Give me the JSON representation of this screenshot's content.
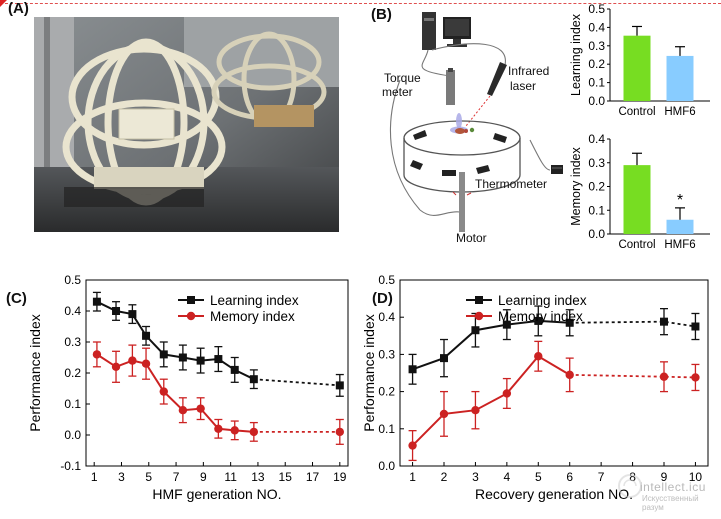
{
  "panels": {
    "a_label": "(A)",
    "b_label": "(B)",
    "c_label": "(C)",
    "d_label": "(D)"
  },
  "apparatus": {
    "torque_meter": [
      "Torque",
      "meter"
    ],
    "infrared_laser": [
      "Infrared",
      "laser"
    ],
    "thermometer": "Thermometer",
    "motor": "Motor"
  },
  "watermark": {
    "brand": "intellect.icu",
    "sub": "Искусственный разум"
  },
  "colors": {
    "learning": "#111111",
    "memory": "#cc2222",
    "bar_control": "#77dd22",
    "bar_hmf": "#88ccff"
  },
  "chart_data": [
    {
      "id": "b-learning",
      "type": "bar",
      "ylabel": "Learning index",
      "categories": [
        "Control",
        "HMF6"
      ],
      "values": [
        0.355,
        0.245
      ],
      "errors": [
        0.05,
        0.05
      ],
      "ylim": [
        0,
        0.5
      ],
      "yticks": [
        "0.0",
        "0.1",
        "0.2",
        "0.3",
        "0.4",
        "0.5"
      ],
      "bar_colors": [
        "#77dd22",
        "#88ccff"
      ],
      "annotations": []
    },
    {
      "id": "b-memory",
      "type": "bar",
      "ylabel": "Memory index",
      "categories": [
        "Control",
        "HMF6"
      ],
      "values": [
        0.29,
        0.06
      ],
      "errors": [
        0.05,
        0.05
      ],
      "ylim": [
        0,
        0.4
      ],
      "yticks": [
        "0.0",
        "0.1",
        "0.2",
        "0.3",
        "0.4"
      ],
      "bar_colors": [
        "#77dd22",
        "#88ccff"
      ],
      "annotations": [
        "*"
      ]
    },
    {
      "id": "c",
      "type": "line",
      "xlabel": "HMF generation NO.",
      "ylabel": "Performance index",
      "ylim": [
        -0.1,
        0.5
      ],
      "yticks": [
        "-0.1",
        "0.0",
        "0.1",
        "0.2",
        "0.3",
        "0.4",
        "0.5"
      ],
      "xticks": [
        "1",
        "3",
        "5",
        "7",
        "9",
        "11",
        "13",
        "15",
        "17",
        "19"
      ],
      "x": [
        1,
        1.5,
        2,
        2.5,
        3,
        3.5,
        4,
        4.5,
        5,
        5.5,
        6,
        6.5,
        7,
        7.5,
        8,
        8.5,
        9,
        19
      ],
      "series": [
        {
          "name": "Learning index",
          "values": [
            0.43,
            0.4,
            0.39,
            0.32,
            0.26,
            0.25,
            0.24,
            0.245,
            0.21,
            0.18,
            null,
            null,
            null,
            null,
            null,
            null,
            null,
            0.16
          ],
          "errors": [
            0.03,
            0.03,
            0.03,
            0.03,
            0.04,
            0.04,
            0.04,
            0.04,
            0.04,
            0.03,
            null,
            null,
            null,
            null,
            null,
            null,
            null,
            0.035
          ]
        },
        {
          "name": "Memory index",
          "values": [
            0.26,
            0.22,
            0.24,
            0.23,
            0.14,
            0.08,
            0.085,
            0.02,
            0.015,
            0.01,
            null,
            null,
            null,
            null,
            null,
            null,
            null,
            0.01
          ],
          "errors": [
            0.04,
            0.05,
            0.05,
            0.05,
            0.04,
            0.04,
            0.035,
            0.03,
            0.03,
            0.03,
            null,
            null,
            null,
            null,
            null,
            null,
            null,
            0.04
          ]
        }
      ],
      "dashed_gap_after_index": 9,
      "legend_position": "top-right"
    },
    {
      "id": "d",
      "type": "line",
      "xlabel": "Recovery generation NO.",
      "ylabel": "Performance index",
      "ylim": [
        0.0,
        0.5
      ],
      "yticks": [
        "0.0",
        "0.1",
        "0.2",
        "0.3",
        "0.4",
        "0.5"
      ],
      "xticks": [
        "1",
        "2",
        "3",
        "4",
        "5",
        "6",
        "7",
        "8",
        "9",
        "10"
      ],
      "x": [
        1,
        2,
        3,
        4,
        5,
        6,
        9,
        10
      ],
      "series": [
        {
          "name": "Learning index",
          "values": [
            0.26,
            0.29,
            0.365,
            0.38,
            0.39,
            0.385,
            0.388,
            0.375
          ],
          "errors": [
            0.04,
            0.05,
            0.045,
            0.04,
            0.04,
            0.035,
            0.035,
            0.035
          ]
        },
        {
          "name": "Memory index",
          "values": [
            0.055,
            0.14,
            0.15,
            0.195,
            0.295,
            0.245,
            0.24,
            0.238
          ],
          "errors": [
            0.04,
            0.06,
            0.05,
            0.04,
            0.04,
            0.045,
            0.04,
            0.035
          ]
        }
      ],
      "dashed_from_index": 5,
      "legend_position": "top-right"
    }
  ]
}
